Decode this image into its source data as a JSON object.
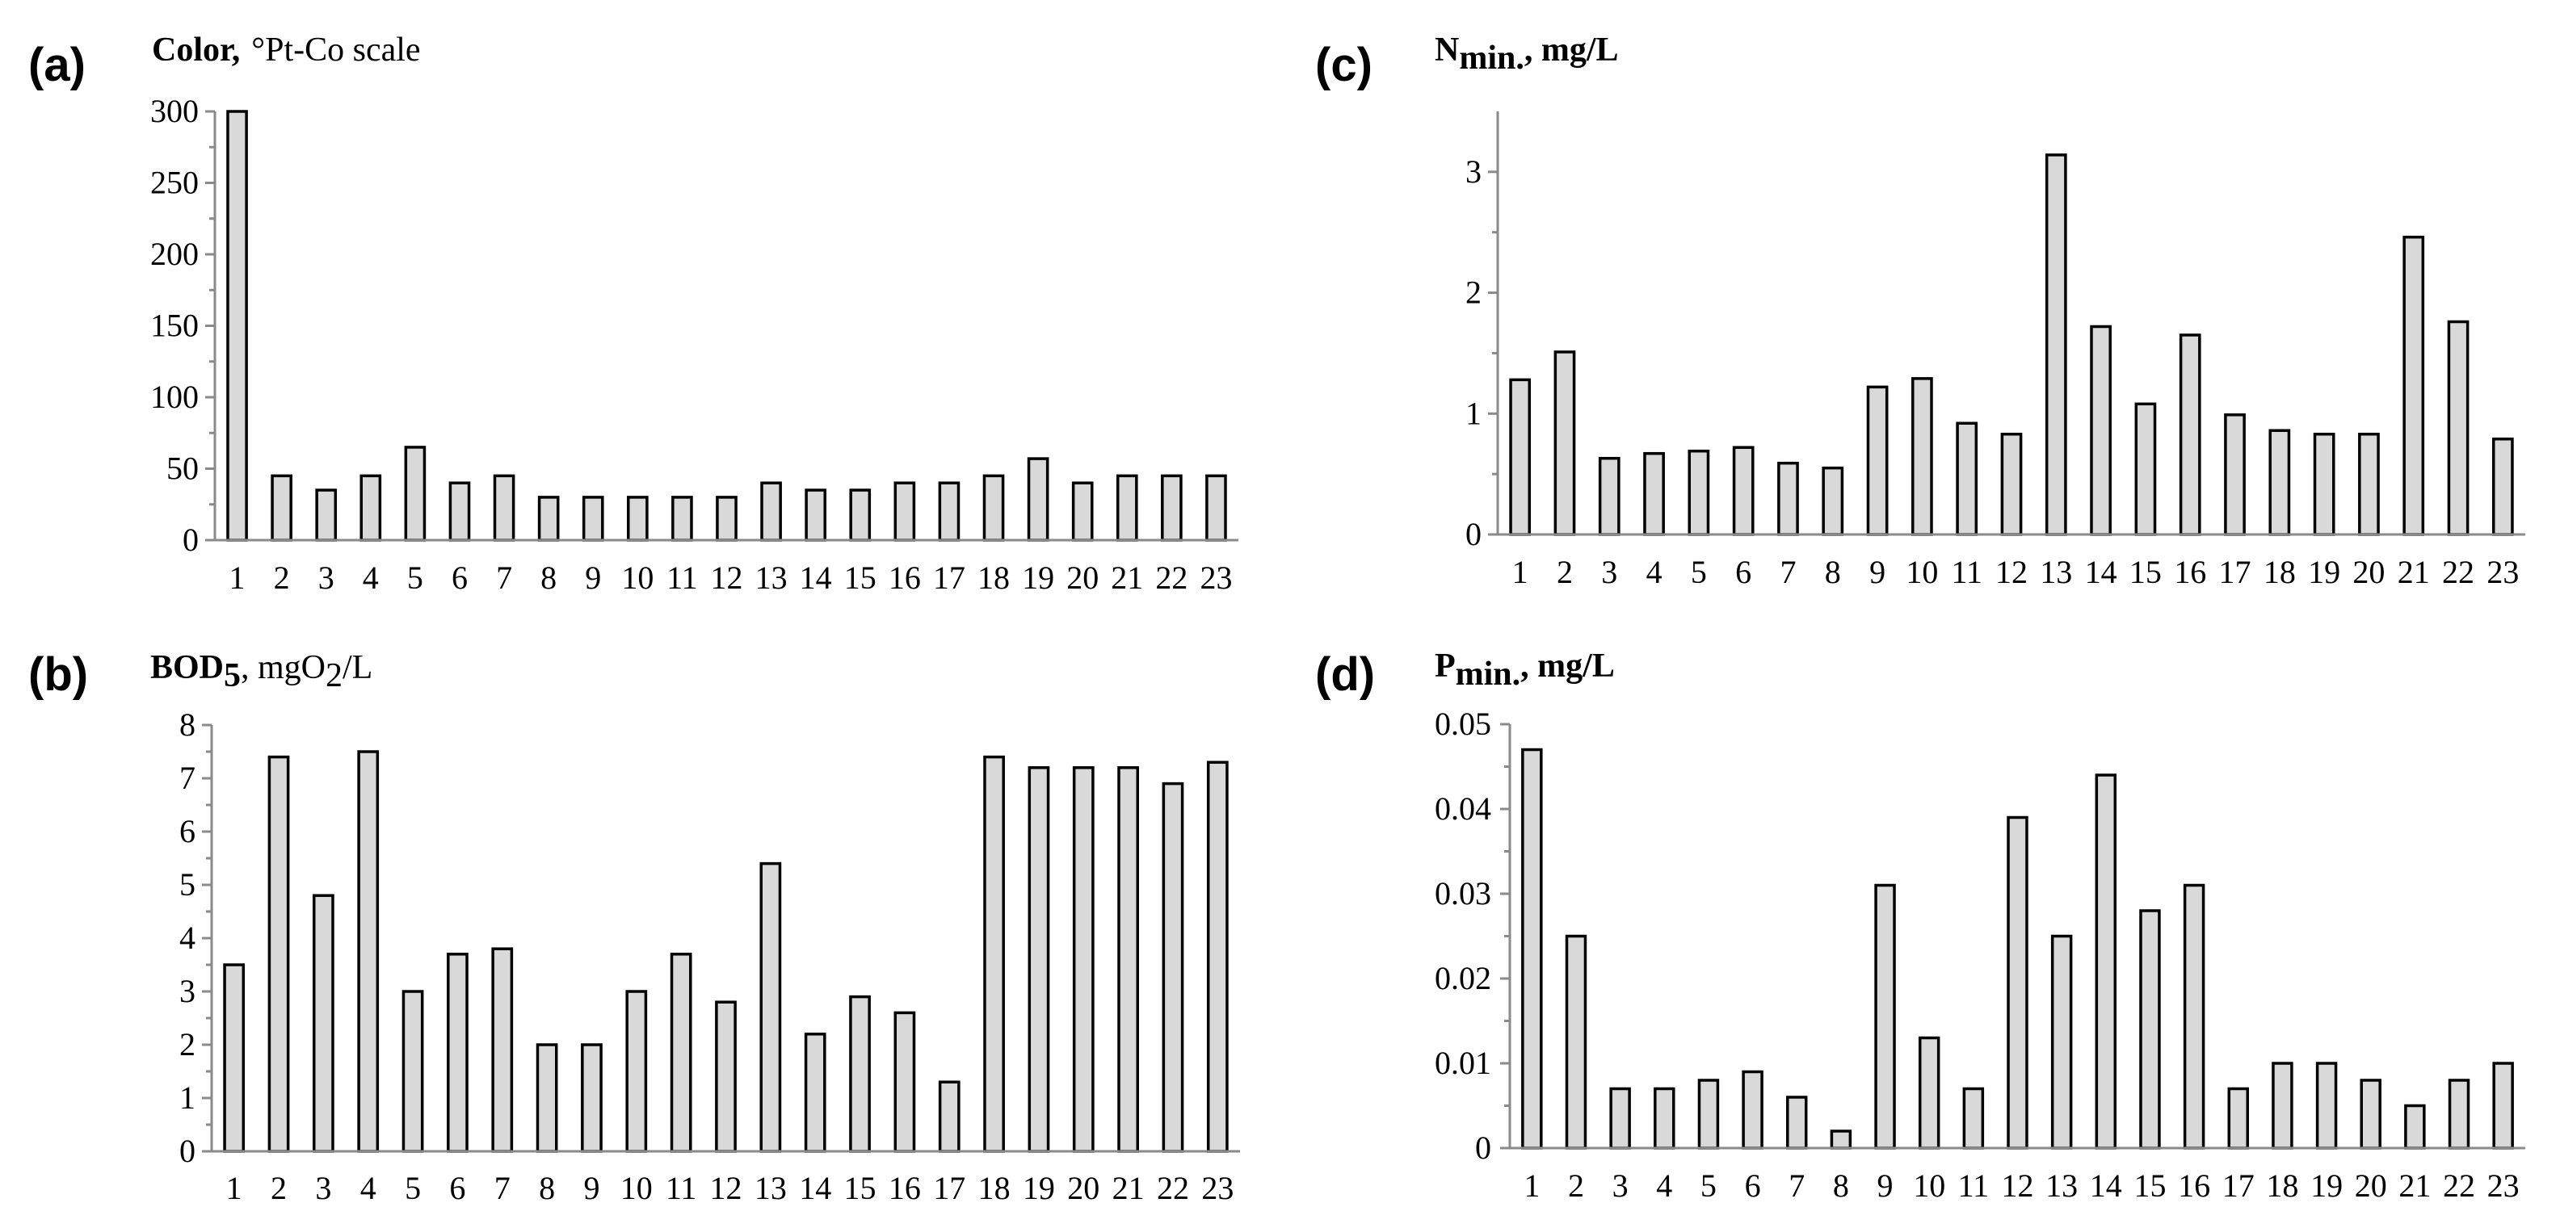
{
  "chart_data": [
    {
      "type": "bar",
      "panel_label": "(a)",
      "title_bold": "Color,",
      "title_regular": "°Pt-Co scale",
      "title": "Color, °Pt-Co scale",
      "xlabel": "",
      "ylabel": "",
      "categories": [
        "1",
        "2",
        "3",
        "4",
        "5",
        "6",
        "7",
        "8",
        "9",
        "10",
        "11",
        "12",
        "13",
        "14",
        "15",
        "16",
        "17",
        "18",
        "19",
        "20",
        "21",
        "22",
        "23"
      ],
      "values": [
        300,
        45,
        35,
        45,
        65,
        40,
        45,
        30,
        30,
        30,
        30,
        30,
        40,
        35,
        35,
        40,
        40,
        45,
        57,
        40,
        45,
        45,
        45
      ],
      "ylim": [
        0,
        300
      ],
      "yticks": [
        "0",
        "50",
        "100",
        "150",
        "200",
        "250",
        "300"
      ],
      "grid": false,
      "bar_color": "#d9d9d9"
    },
    {
      "type": "bar",
      "panel_label": "(b)",
      "title_bold": "BOD",
      "title_bold_sub": "5",
      "title_regular": ", mgO",
      "title_regular_sub": "2",
      "title_regular_tail": "/L",
      "title": "BOD5, mgO2/L",
      "xlabel": "",
      "ylabel": "",
      "categories": [
        "1",
        "2",
        "3",
        "4",
        "5",
        "6",
        "7",
        "8",
        "9",
        "10",
        "11",
        "12",
        "13",
        "14",
        "15",
        "16",
        "17",
        "18",
        "19",
        "20",
        "21",
        "22",
        "23"
      ],
      "values": [
        3.5,
        7.4,
        4.8,
        7.5,
        3.0,
        3.7,
        3.8,
        2.0,
        2.0,
        3.0,
        3.7,
        2.8,
        5.4,
        2.2,
        2.9,
        2.6,
        1.3,
        7.4,
        7.2,
        7.2,
        7.2,
        6.9,
        7.3
      ],
      "ylim": [
        0,
        8
      ],
      "yticks": [
        "0",
        "1",
        "2",
        "3",
        "4",
        "5",
        "6",
        "7",
        "8"
      ],
      "grid": false,
      "bar_color": "#d9d9d9"
    },
    {
      "type": "bar",
      "panel_label": "(c)",
      "title_bold": "N",
      "title_bold_sub": "min.",
      "title_bold_tail": ", mg/L",
      "title": "Nmin., mg/L",
      "xlabel": "",
      "ylabel": "",
      "categories": [
        "1",
        "2",
        "3",
        "4",
        "5",
        "6",
        "7",
        "8",
        "9",
        "10",
        "11",
        "12",
        "13",
        "14",
        "15",
        "16",
        "17",
        "18",
        "19",
        "20",
        "21",
        "22",
        "23"
      ],
      "values": [
        1.28,
        1.51,
        0.63,
        0.67,
        0.69,
        0.72,
        0.59,
        0.55,
        1.22,
        1.29,
        0.92,
        0.83,
        3.14,
        1.72,
        1.08,
        1.65,
        0.99,
        0.86,
        0.83,
        0.83,
        2.46,
        1.76,
        0.79
      ],
      "ylim": [
        0,
        3.5
      ],
      "yticks": [
        "0",
        "1",
        "2",
        "3"
      ],
      "grid": false,
      "bar_color": "#d9d9d9"
    },
    {
      "type": "bar",
      "panel_label": "(d)",
      "title_bold": "P",
      "title_bold_sub": "min.",
      "title_bold_tail": ",  mg/L",
      "title": "Pmin., mg/L",
      "xlabel": "",
      "ylabel": "",
      "categories": [
        "1",
        "2",
        "3",
        "4",
        "5",
        "6",
        "7",
        "8",
        "9",
        "10",
        "11",
        "12",
        "13",
        "14",
        "15",
        "16",
        "17",
        "18",
        "19",
        "20",
        "21",
        "22",
        "23"
      ],
      "values": [
        0.047,
        0.025,
        0.007,
        0.007,
        0.008,
        0.009,
        0.006,
        0.002,
        0.031,
        0.013,
        0.007,
        0.039,
        0.025,
        0.044,
        0.028,
        0.031,
        0.007,
        0.01,
        0.01,
        0.008,
        0.005,
        0.008,
        0.01
      ],
      "ylim": [
        0,
        0.05
      ],
      "yticks": [
        "0",
        "0.01",
        "0.02",
        "0.03",
        "0.04",
        "0.05"
      ],
      "grid": false,
      "bar_color": "#d9d9d9"
    }
  ]
}
